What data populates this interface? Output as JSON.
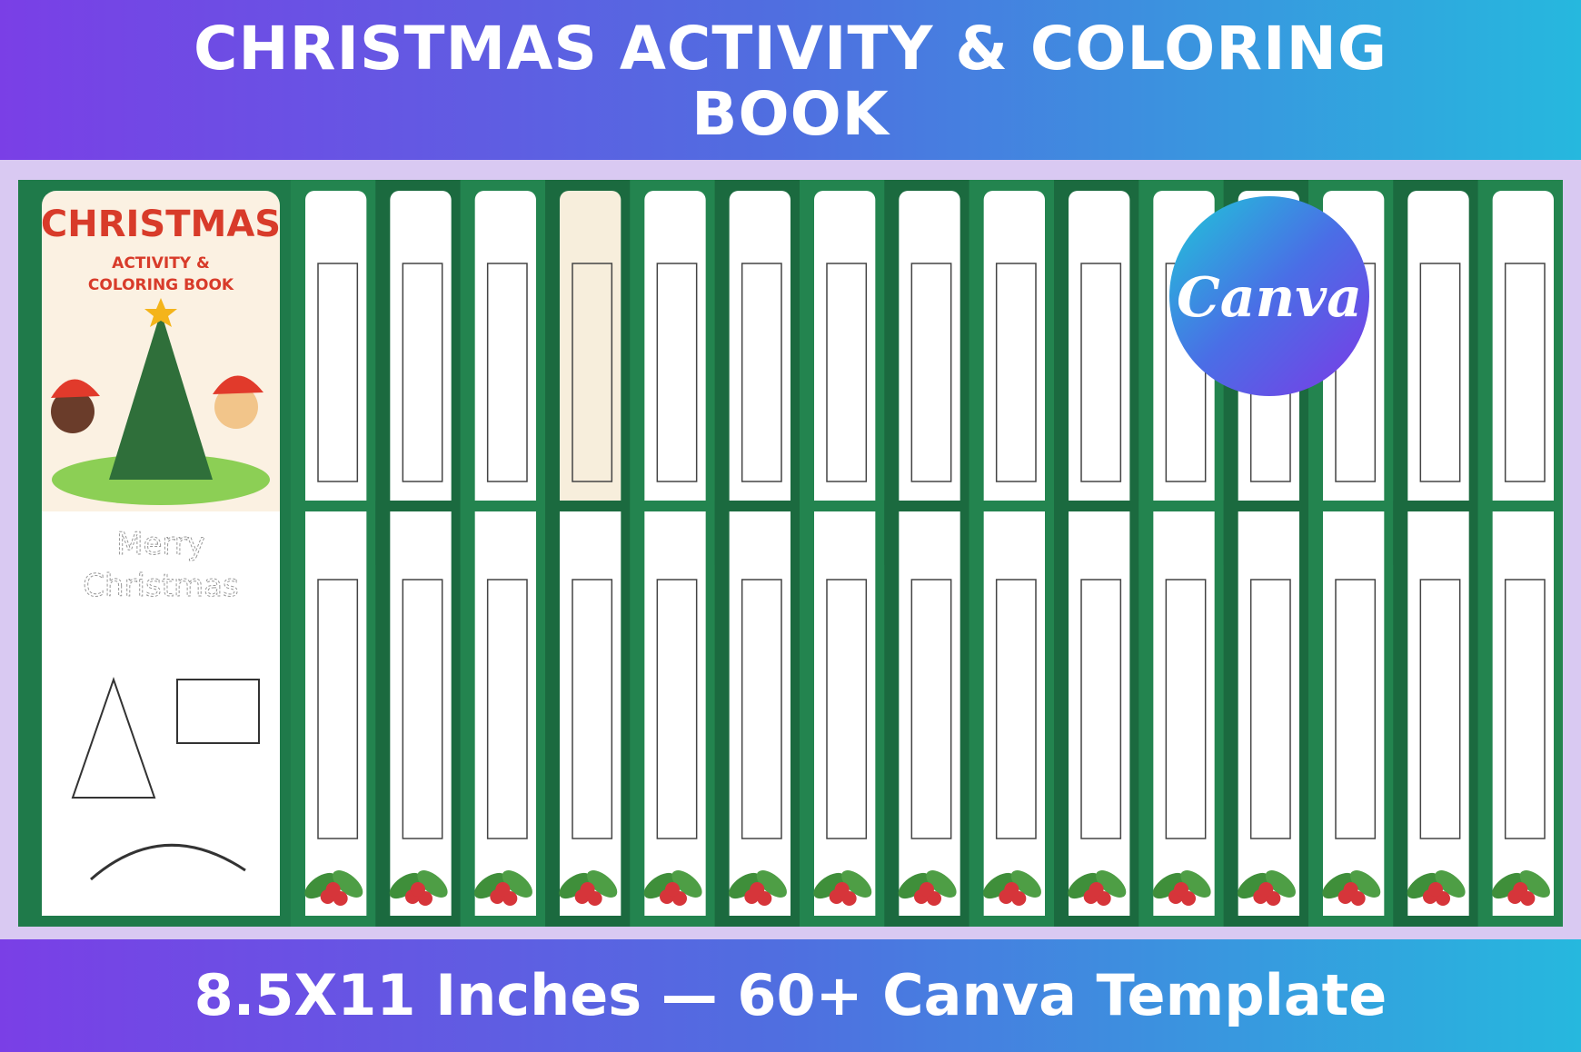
{
  "header": {
    "title": "CHRISTMAS ACTIVITY & COLORING BOOK"
  },
  "cover": {
    "title": "CHRISTMAS",
    "subtitle": "ACTIVITY & COLORING BOOK"
  },
  "coloring_page": {
    "lines": [
      "Merry",
      "Christmas"
    ]
  },
  "badge": {
    "label": "Canva"
  },
  "footer": {
    "text": "8.5X11 Inches — 60+ Canva Template"
  }
}
